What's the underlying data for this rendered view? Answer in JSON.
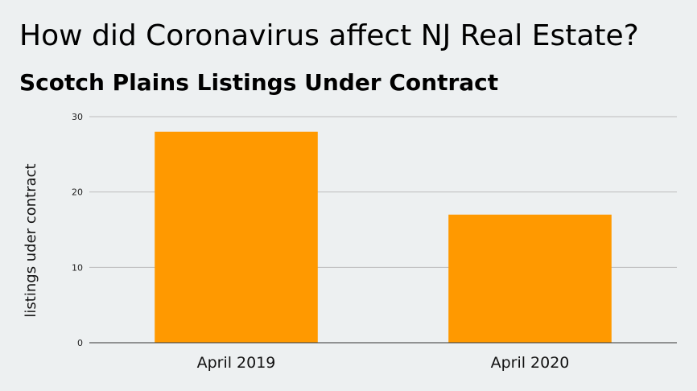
{
  "chart_data": {
    "type": "bar",
    "title": "How did Coronavirus affect NJ Real Estate?",
    "subtitle": "Scotch Plains Listings Under Contract",
    "xlabel": "",
    "ylabel": "listings uder contract",
    "categories": [
      "April 2019",
      "April 2020"
    ],
    "series": [
      {
        "values": [
          28,
          17
        ],
        "color": "#ff9900"
      }
    ],
    "ylim": [
      0,
      30
    ],
    "yticks": [
      0,
      10,
      20,
      30
    ],
    "grid": true,
    "legend": "none"
  }
}
